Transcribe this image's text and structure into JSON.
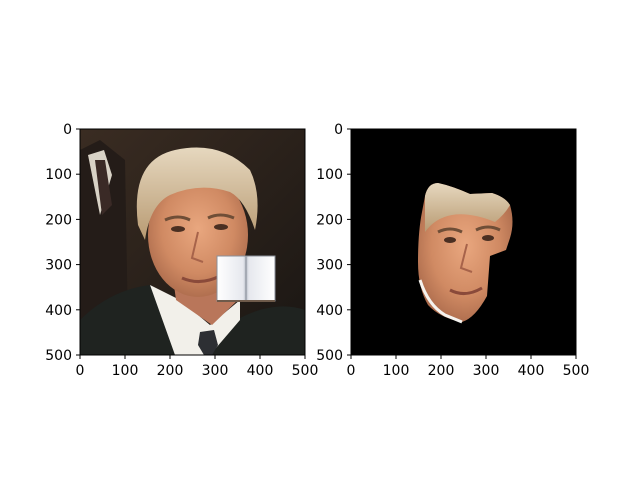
{
  "chart_data": [
    {
      "type": "image",
      "xlim": [
        0,
        500
      ],
      "ylim": [
        500,
        0
      ],
      "xticks": [
        0,
        100,
        200,
        300,
        400,
        500
      ],
      "yticks": [
        0,
        100,
        200,
        300,
        400,
        500
      ],
      "xtick_labels": [
        "0",
        "100",
        "200",
        "300",
        "400",
        "500"
      ],
      "ytick_labels": [
        "0",
        "100",
        "200",
        "300",
        "400",
        "500"
      ],
      "background": "#2b231d",
      "overlay": {
        "shape": "open-book",
        "x_range": [
          305,
          435
        ],
        "y_range": [
          280,
          380
        ]
      }
    },
    {
      "type": "image",
      "xlim": [
        0,
        500
      ],
      "ylim": [
        500,
        0
      ],
      "xticks": [
        0,
        100,
        200,
        300,
        400,
        500
      ],
      "yticks": [
        0,
        100,
        200,
        300,
        400,
        500
      ],
      "xtick_labels": [
        "0",
        "100",
        "200",
        "300",
        "400",
        "500"
      ],
      "ytick_labels": [
        "0",
        "100",
        "200",
        "300",
        "400",
        "500"
      ],
      "background": "#000000",
      "mask": {
        "x_range": [
          150,
          360
        ],
        "y_range": [
          115,
          425
        ]
      }
    }
  ]
}
